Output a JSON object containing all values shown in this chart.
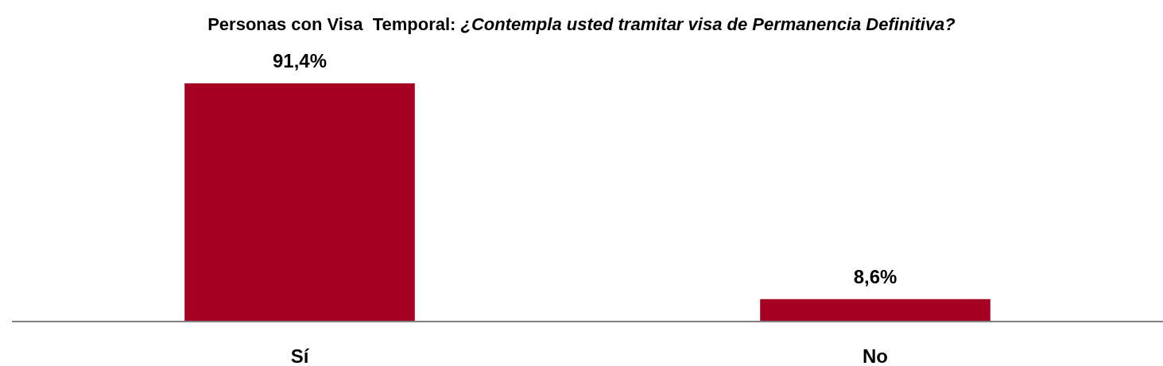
{
  "chart_data": {
    "type": "bar",
    "title": "Personas con Visa  Temporal: ¿Contempla usted tramitar visa de Permanencia Definitiva?",
    "categories": [
      "Sí",
      "No"
    ],
    "values": [
      91.4,
      8.6
    ],
    "value_labels": [
      "91,4%",
      "8,6%"
    ],
    "color": "#a50021"
  }
}
